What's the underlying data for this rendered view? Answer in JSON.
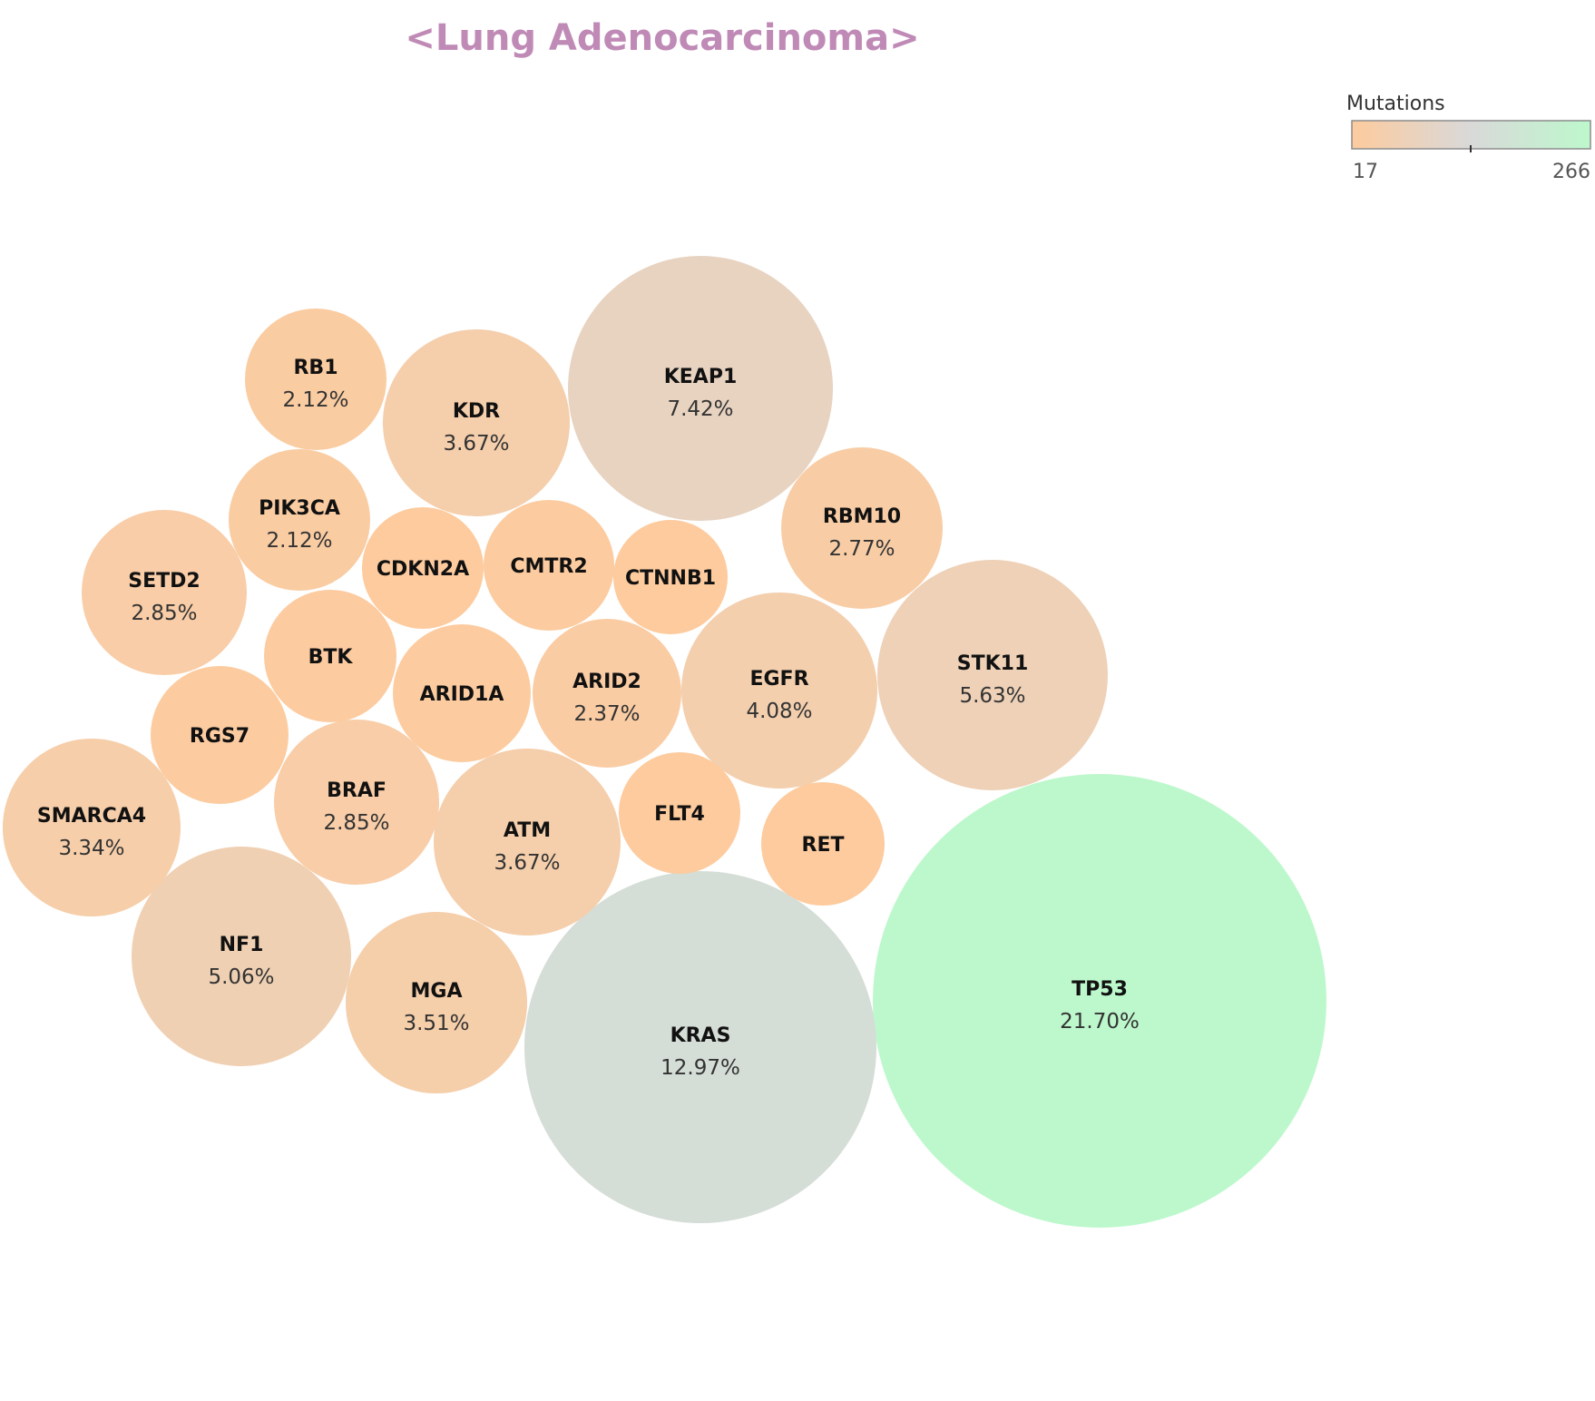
{
  "chart_data": {
    "type": "packed-bubble",
    "title": "<Lung Adenocarcinoma>",
    "legend": {
      "title": "Mutations",
      "min_label": "17",
      "max_label": "266",
      "min": 17,
      "max": 266,
      "color_low": "#FDCB9E",
      "color_mid": "#D9D9D9",
      "color_high": "#BDF8CC",
      "placement": "top-right"
    },
    "colors": {
      "title": "#C08AB6"
    },
    "genes": [
      {
        "name": "TP53",
        "pct": "21.70%",
        "mutations": 266
      },
      {
        "name": "KRAS",
        "pct": "12.97%",
        "mutations": 159
      },
      {
        "name": "KEAP1",
        "pct": "7.42%",
        "mutations": 91
      },
      {
        "name": "STK11",
        "pct": "5.63%",
        "mutations": 69
      },
      {
        "name": "NF1",
        "pct": "5.06%",
        "mutations": 62
      },
      {
        "name": "EGFR",
        "pct": "4.08%",
        "mutations": 50
      },
      {
        "name": "KDR",
        "pct": "3.67%",
        "mutations": 45
      },
      {
        "name": "ATM",
        "pct": "3.67%",
        "mutations": 45
      },
      {
        "name": "MGA",
        "pct": "3.51%",
        "mutations": 43
      },
      {
        "name": "SMARCA4",
        "pct": "3.34%",
        "mutations": 41
      },
      {
        "name": "SETD2",
        "pct": "2.85%",
        "mutations": 35
      },
      {
        "name": "BRAF",
        "pct": "2.85%",
        "mutations": 35
      },
      {
        "name": "RBM10",
        "pct": "2.77%",
        "mutations": 34
      },
      {
        "name": "ARID2",
        "pct": "2.37%",
        "mutations": 29
      },
      {
        "name": "RB1",
        "pct": "2.12%",
        "mutations": 26
      },
      {
        "name": "PIK3CA",
        "pct": "2.12%",
        "mutations": 26
      },
      {
        "name": "ARID1A",
        "pct": "",
        "mutations": 22
      },
      {
        "name": "RGS7",
        "pct": "",
        "mutations": 22
      },
      {
        "name": "BTK",
        "pct": "",
        "mutations": 21
      },
      {
        "name": "CMTR2",
        "pct": "",
        "mutations": 20
      },
      {
        "name": "CDKN2A",
        "pct": "",
        "mutations": 18
      },
      {
        "name": "RET",
        "pct": "",
        "mutations": 18
      },
      {
        "name": "FLT4",
        "pct": "",
        "mutations": 17
      },
      {
        "name": "CTNNB1",
        "pct": "",
        "mutations": 17
      }
    ]
  }
}
